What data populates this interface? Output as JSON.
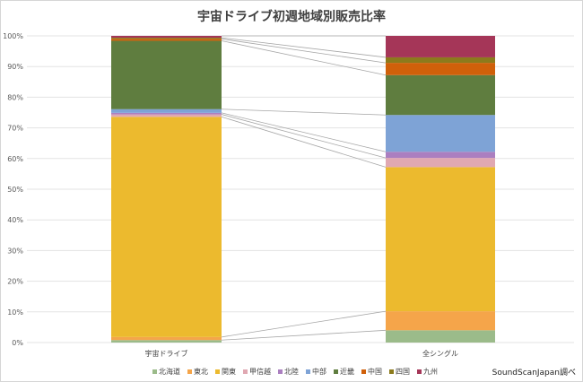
{
  "chart_data": {
    "type": "bar",
    "stacked": true,
    "percent": true,
    "title": "宇宙ドライブ初週地域別販売比率",
    "categories": [
      "宇宙ドライブ",
      "全シングル"
    ],
    "ylim": [
      0,
      100
    ],
    "yticks": [
      "0%",
      "10%",
      "20%",
      "30%",
      "40%",
      "50%",
      "60%",
      "70%",
      "80%",
      "90%",
      "100%"
    ],
    "series": [
      {
        "name": "北海道",
        "color": "#9bbb8a",
        "values": [
          0.8,
          4.0
        ]
      },
      {
        "name": "東北",
        "color": "#f5a54a",
        "values": [
          1.0,
          6.2
        ]
      },
      {
        "name": "関東",
        "color": "#ecba2e",
        "values": [
          71.8,
          47.0
        ]
      },
      {
        "name": "甲信越",
        "color": "#e0a8b2",
        "values": [
          0.8,
          3.0
        ]
      },
      {
        "name": "北陸",
        "color": "#ab7fc0",
        "values": [
          0.5,
          2.0
        ]
      },
      {
        "name": "中部",
        "color": "#7ea3d6",
        "values": [
          1.2,
          12.0
        ]
      },
      {
        "name": "近畿",
        "color": "#5f7d3f",
        "values": [
          22.3,
          13.0
        ]
      },
      {
        "name": "中国",
        "color": "#d0600a",
        "values": [
          0.6,
          4.0
        ]
      },
      {
        "name": "四国",
        "color": "#8c7a1c",
        "values": [
          0.4,
          1.8
        ]
      },
      {
        "name": "九州",
        "color": "#a53658",
        "values": [
          0.6,
          7.0
        ]
      }
    ],
    "grid": true,
    "legend": "bottom"
  },
  "source_note": "SoundScanJapan調べ"
}
